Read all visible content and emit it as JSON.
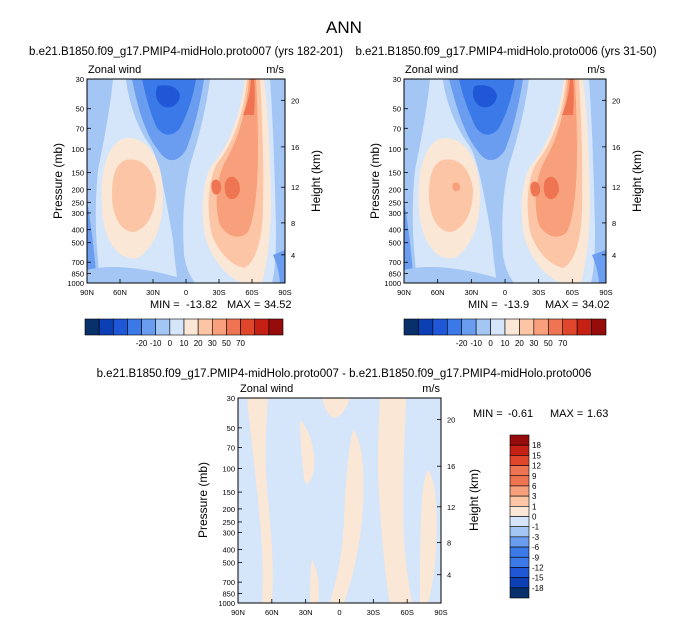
{
  "figure_title": "ANN",
  "colors": {
    "scale": [
      "#08306b",
      "#0d3fb4",
      "#1f57d6",
      "#3b78e8",
      "#6a9df0",
      "#a4c6f5",
      "#d5e6fb",
      "#fbe7d6",
      "#fcc5a6",
      "#f8a07b",
      "#ef7552",
      "#e0462c",
      "#c62015",
      "#960b0b"
    ],
    "diff_positive": "#fbe7d6",
    "diff_negative": "#d5e6fb"
  },
  "chart_data": [
    {
      "type": "contour",
      "title": "b.e21.B1850.f09_g17.PMIP4-midHolo.proto007 (yrs 182-201)",
      "left_label": "Zonal wind",
      "units": "m/s",
      "xlabel": "",
      "ylabel": "Pressure (mb)",
      "ylabel_right": "Height (km)",
      "x_ticks": [
        "90N",
        "60N",
        "30N",
        "0",
        "30S",
        "60S",
        "90S"
      ],
      "y_ticks": [
        "30",
        "50",
        "70",
        "100",
        "150",
        "200",
        "250",
        "300",
        "400",
        "500",
        "700",
        "850",
        "1000"
      ],
      "y_values": [
        30,
        50,
        70,
        100,
        150,
        200,
        250,
        300,
        400,
        500,
        700,
        850,
        1000
      ],
      "ylim": [
        30,
        1000
      ],
      "height_ticks": [
        4,
        8,
        12,
        16,
        20
      ],
      "min": -13.82,
      "max": 34.52,
      "min_label": "MIN =",
      "max_label": "MAX =",
      "levels": [
        -20,
        -10,
        0,
        10,
        20,
        30,
        50,
        70
      ],
      "colorbar_labels": [
        "-20",
        "-10",
        "0",
        "10",
        "20",
        "30",
        "50",
        "70"
      ]
    },
    {
      "type": "contour",
      "title": "b.e21.B1850.f09_g17.PMIP4-midHolo.proto006 (yrs 31-50)",
      "left_label": "Zonal wind",
      "units": "m/s",
      "xlabel": "",
      "ylabel": "Pressure (mb)",
      "ylabel_right": "Height (km)",
      "x_ticks": [
        "90N",
        "60N",
        "30N",
        "0",
        "30S",
        "60S",
        "90S"
      ],
      "y_ticks": [
        "30",
        "50",
        "70",
        "100",
        "150",
        "200",
        "250",
        "300",
        "400",
        "500",
        "700",
        "850",
        "1000"
      ],
      "y_values": [
        30,
        50,
        70,
        100,
        150,
        200,
        250,
        300,
        400,
        500,
        700,
        850,
        1000
      ],
      "ylim": [
        30,
        1000
      ],
      "height_ticks": [
        4,
        8,
        12,
        16,
        20
      ],
      "min": -13.9,
      "max": 34.02,
      "min_label": "MIN =",
      "max_label": "MAX =",
      "levels": [
        -20,
        -10,
        0,
        10,
        20,
        30,
        50,
        70
      ],
      "colorbar_labels": [
        "-20",
        "-10",
        "0",
        "10",
        "20",
        "30",
        "50",
        "70"
      ]
    },
    {
      "type": "contour",
      "title": "b.e21.B1850.f09_g17.PMIP4-midHolo.proto007 - b.e21.B1850.f09_g17.PMIP4-midHolo.proto006",
      "left_label": "Zonal wind",
      "units": "m/s",
      "xlabel": "",
      "ylabel": "Pressure (mb)",
      "ylabel_right": "Height (km)",
      "x_ticks": [
        "90N",
        "60N",
        "30N",
        "0",
        "30S",
        "60S",
        "90S"
      ],
      "y_ticks": [
        "30",
        "50",
        "70",
        "100",
        "150",
        "200",
        "250",
        "300",
        "400",
        "500",
        "700",
        "850",
        "1000"
      ],
      "y_values": [
        30,
        50,
        70,
        100,
        150,
        200,
        250,
        300,
        400,
        500,
        700,
        850,
        1000
      ],
      "ylim": [
        30,
        1000
      ],
      "height_ticks": [
        4,
        8,
        12,
        16,
        20
      ],
      "min": -0.61,
      "max": 1.63,
      "min_label": "MIN =",
      "max_label": "MAX =",
      "levels": [
        -18,
        -15,
        -12,
        -9,
        -6,
        -3,
        -1,
        0,
        1,
        3,
        6,
        9,
        12,
        15,
        18
      ],
      "colorbar_labels": [
        "18",
        "15",
        "12",
        "9",
        "6",
        "3",
        "1",
        "0",
        "-1",
        "-3",
        "-6",
        "-9",
        "-12",
        "-15",
        "-18"
      ]
    }
  ]
}
